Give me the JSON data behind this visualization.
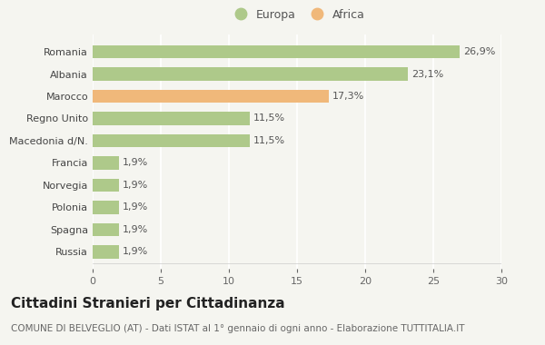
{
  "categories": [
    "Russia",
    "Spagna",
    "Polonia",
    "Norvegia",
    "Francia",
    "Macedonia d/N.",
    "Regno Unito",
    "Marocco",
    "Albania",
    "Romania"
  ],
  "values": [
    1.9,
    1.9,
    1.9,
    1.9,
    1.9,
    11.5,
    11.5,
    17.3,
    23.1,
    26.9
  ],
  "labels": [
    "1,9%",
    "1,9%",
    "1,9%",
    "1,9%",
    "1,9%",
    "11,5%",
    "11,5%",
    "17,3%",
    "23,1%",
    "26,9%"
  ],
  "continent": [
    "Europa",
    "Europa",
    "Europa",
    "Europa",
    "Europa",
    "Europa",
    "Europa",
    "Africa",
    "Europa",
    "Europa"
  ],
  "color_europa": "#aec98a",
  "color_africa": "#f0b87a",
  "background_color": "#f5f5f0",
  "title": "Cittadini Stranieri per Cittadinanza",
  "subtitle": "COMUNE DI BELVEGLIO (AT) - Dati ISTAT al 1° gennaio di ogni anno - Elaborazione TUTTITALIA.IT",
  "xlim": [
    0,
    30
  ],
  "xticks": [
    0,
    5,
    10,
    15,
    20,
    25,
    30
  ],
  "legend_europa": "Europa",
  "legend_africa": "Africa",
  "bar_label_fontsize": 8,
  "tick_label_fontsize": 8,
  "title_fontsize": 11,
  "subtitle_fontsize": 7.5
}
